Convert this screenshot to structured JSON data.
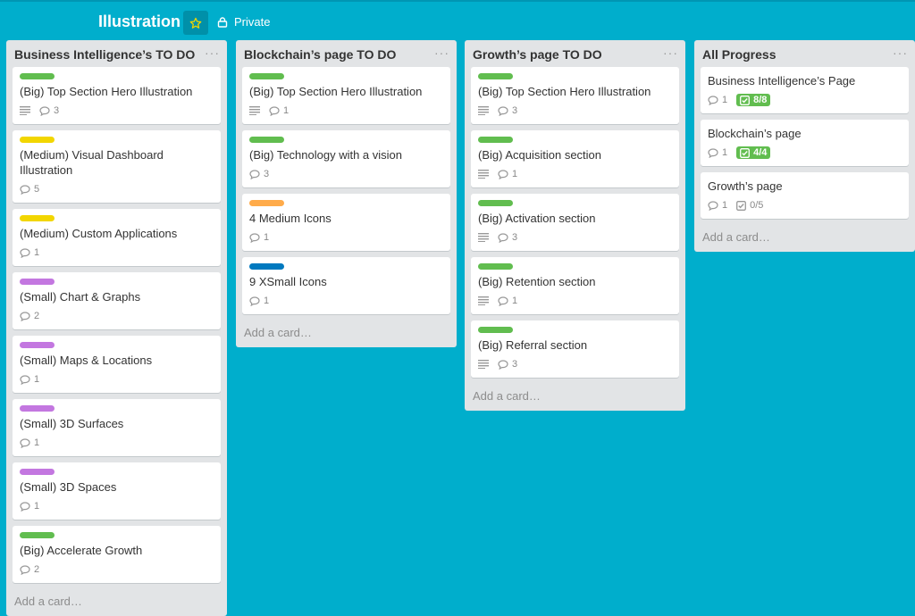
{
  "board": {
    "title": "Illustration",
    "star_icon": "star-icon",
    "privacy_label": "Private"
  },
  "colors": {
    "background": "#00aecc",
    "label_green": "#61bd4f",
    "label_yellow": "#f2d600",
    "label_purple": "#c377e0",
    "label_orange": "#ffab4a",
    "label_blue": "#0079bf",
    "check_complete": "#61bd4f"
  },
  "lists": [
    {
      "title": "Business Intelligence’s TO DO",
      "add_card": "Add a card…",
      "cards": [
        {
          "label": "green",
          "title": "(Big) Top Section Hero Illustration",
          "description": true,
          "comments": "3"
        },
        {
          "label": "yellow",
          "title": "(Medium) Visual Dashboard Illustration",
          "description": false,
          "comments": "5"
        },
        {
          "label": "yellow",
          "title": "(Medium) Custom Applications",
          "description": false,
          "comments": "1"
        },
        {
          "label": "purple",
          "title": "(Small) Chart & Graphs",
          "description": false,
          "comments": "2"
        },
        {
          "label": "purple",
          "title": "(Small) Maps & Locations",
          "description": false,
          "comments": "1"
        },
        {
          "label": "purple",
          "title": "(Small) 3D Surfaces",
          "description": false,
          "comments": "1"
        },
        {
          "label": "purple",
          "title": "(Small) 3D Spaces",
          "description": false,
          "comments": "1"
        },
        {
          "label": "green",
          "title": "(Big) Accelerate Growth",
          "description": false,
          "comments": "2"
        }
      ]
    },
    {
      "title": "Blockchain’s page TO DO",
      "add_card": "Add a card…",
      "cards": [
        {
          "label": "green",
          "title": "(Big) Top Section Hero Illustration",
          "description": true,
          "comments": "1"
        },
        {
          "label": "green",
          "title": "(Big) Technology with a vision",
          "description": false,
          "comments": "3"
        },
        {
          "label": "orange",
          "title": "4 Medium Icons",
          "description": false,
          "comments": "1"
        },
        {
          "label": "blue",
          "title": "9 XSmall Icons",
          "description": false,
          "comments": "1"
        }
      ]
    },
    {
      "title": "Growth’s page TO DO",
      "add_card": "Add a card…",
      "cards": [
        {
          "label": "green",
          "title": "(Big) Top Section Hero Illustration",
          "description": true,
          "comments": "3"
        },
        {
          "label": "green",
          "title": "(Big) Acquisition section",
          "description": true,
          "comments": "1"
        },
        {
          "label": "green",
          "title": "(Big) Activation section",
          "description": true,
          "comments": "3"
        },
        {
          "label": "green",
          "title": "(Big) Retention section",
          "description": true,
          "comments": "1"
        },
        {
          "label": "green",
          "title": "(Big) Referral section",
          "description": true,
          "comments": "3"
        }
      ]
    },
    {
      "title": "All Progress",
      "add_card": "Add a card…",
      "cards": [
        {
          "label": null,
          "title": "Business Intelligence’s Page",
          "description": false,
          "comments": "1",
          "checklist": "8/8",
          "checklist_complete": true
        },
        {
          "label": null,
          "title": "Blockchain’s page",
          "description": false,
          "comments": "1",
          "checklist": "4/4",
          "checklist_complete": true
        },
        {
          "label": null,
          "title": "Growth’s page",
          "description": false,
          "comments": "1",
          "checklist": "0/5",
          "checklist_complete": false
        }
      ]
    }
  ]
}
